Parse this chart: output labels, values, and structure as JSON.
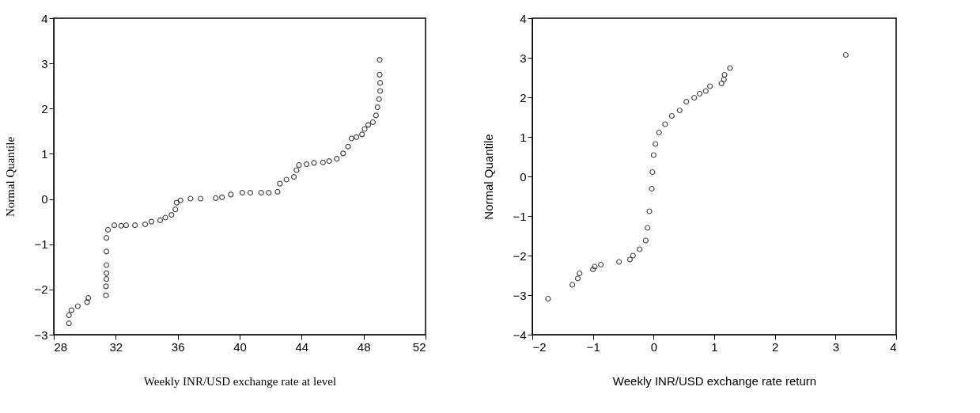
{
  "chart_data": [
    {
      "type": "scatter",
      "xlabel": "Weekly INR/USD exchange rate at level",
      "ylabel": "Normal Quantile",
      "marker": "circle",
      "grid": false,
      "xlim": [
        28,
        52
      ],
      "xticks": [
        28,
        32,
        36,
        40,
        44,
        48,
        52
      ],
      "ylim": [
        -3,
        4
      ],
      "yticks": [
        -3,
        -2,
        -1,
        0,
        1,
        2,
        3,
        4
      ],
      "x": [
        28.98,
        28.98,
        29.14,
        29.55,
        30.15,
        30.23,
        31.37,
        31.37,
        31.4,
        31.4,
        31.4,
        31.4,
        31.4,
        31.5,
        31.91,
        32.35,
        32.67,
        33.24,
        33.9,
        34.3,
        34.87,
        35.2,
        35.6,
        35.85,
        35.93,
        36.18,
        36.83,
        37.48,
        38.46,
        38.86,
        39.43,
        40.17,
        40.69,
        41.39,
        41.88,
        42.45,
        42.6,
        43.02,
        43.5,
        43.67,
        43.83,
        44.32,
        44.8,
        45.38,
        45.78,
        46.27,
        46.68,
        47.0,
        47.22,
        47.54,
        47.9,
        48.07,
        48.3,
        48.6,
        48.8,
        48.9,
        49.0,
        49.07,
        49.07,
        49.04,
        49.04
      ],
      "values": [
        -2.75,
        -2.57,
        -2.46,
        -2.37,
        -2.28,
        -2.19,
        -2.13,
        -1.93,
        -1.77,
        -1.64,
        -1.46,
        -1.16,
        -0.86,
        -0.68,
        -0.58,
        -0.59,
        -0.58,
        -0.58,
        -0.56,
        -0.5,
        -0.47,
        -0.41,
        -0.35,
        -0.23,
        -0.08,
        -0.03,
        0.01,
        0.01,
        0.02,
        0.04,
        0.1,
        0.14,
        0.14,
        0.14,
        0.14,
        0.16,
        0.34,
        0.43,
        0.49,
        0.64,
        0.75,
        0.77,
        0.8,
        0.81,
        0.84,
        0.89,
        1.01,
        1.16,
        1.34,
        1.37,
        1.43,
        1.55,
        1.64,
        1.7,
        1.85,
        2.03,
        2.21,
        2.39,
        2.57,
        2.75,
        3.08
      ]
    },
    {
      "type": "scatter",
      "xlabel": "Weekly INR/USD exchange rate return",
      "ylabel": "Normal Quantile",
      "marker": "circle",
      "grid": false,
      "xlim": [
        -2,
        4
      ],
      "xticks": [
        -2,
        -1,
        0,
        1,
        2,
        3,
        4
      ],
      "ylim": [
        -4,
        4
      ],
      "yticks": [
        -4,
        -3,
        -2,
        -1,
        0,
        1,
        2,
        3,
        4
      ],
      "x": [
        -1.74,
        -1.34,
        -1.25,
        -1.22,
        -1.0,
        -0.97,
        -0.87,
        -0.57,
        -0.39,
        -0.34,
        -0.23,
        -0.13,
        -0.1,
        -0.07,
        -0.03,
        -0.02,
        0.0,
        0.03,
        0.09,
        0.19,
        0.3,
        0.43,
        0.54,
        0.67,
        0.76,
        0.86,
        0.93,
        1.12,
        1.16,
        1.17,
        1.26,
        3.17
      ],
      "values": [
        -3.09,
        -2.74,
        -2.58,
        -2.45,
        -2.35,
        -2.28,
        -2.23,
        -2.16,
        -2.1,
        -2.0,
        -1.84,
        -1.62,
        -1.3,
        -0.88,
        -0.31,
        0.11,
        0.54,
        0.82,
        1.11,
        1.32,
        1.53,
        1.67,
        1.89,
        1.99,
        2.09,
        2.16,
        2.28,
        2.35,
        2.45,
        2.57,
        2.74,
        3.07
      ]
    }
  ]
}
